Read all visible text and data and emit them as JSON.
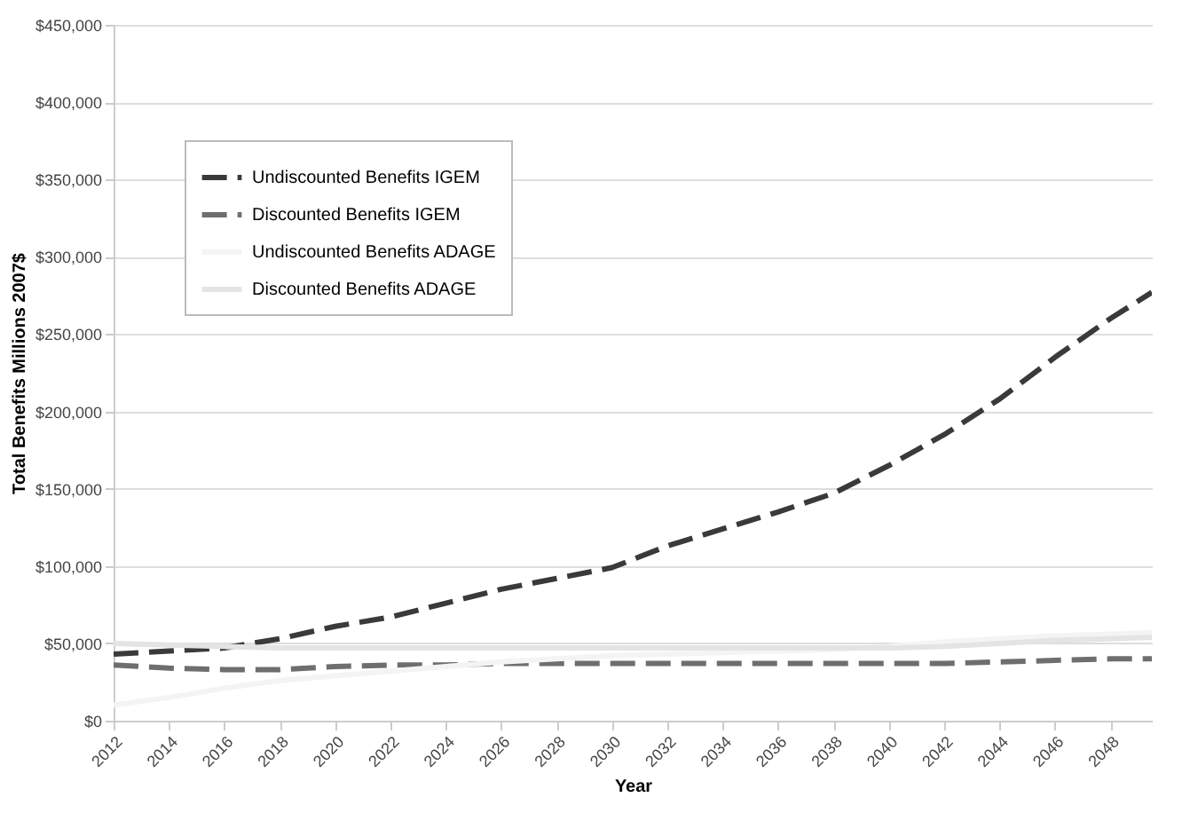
{
  "chart_data": {
    "type": "line",
    "xlabel": "Year",
    "ylabel": "Total Benefits Millions 2007$",
    "x": [
      2012,
      2014,
      2016,
      2018,
      2020,
      2022,
      2024,
      2026,
      2028,
      2030,
      2032,
      2034,
      2036,
      2038,
      2040,
      2042,
      2044,
      2046,
      2048,
      2049.5
    ],
    "series": [
      {
        "name": "Undiscounted Benefits IGEM",
        "color": "#3a3a3a",
        "line_style": "dashed",
        "values": [
          43000,
          45000,
          47000,
          53000,
          61000,
          67000,
          76000,
          85000,
          92000,
          99000,
          113000,
          124000,
          135000,
          147000,
          165000,
          185000,
          208000,
          235000,
          260000,
          277000
        ]
      },
      {
        "name": "Discounted Benefits IGEM",
        "color": "#6e6e6e",
        "line_style": "dashed",
        "values": [
          36000,
          34000,
          33000,
          33000,
          35000,
          36000,
          36000,
          37000,
          37000,
          37000,
          37000,
          37000,
          37000,
          37000,
          37000,
          37000,
          38000,
          39000,
          40000,
          40000
        ]
      },
      {
        "name": "Undiscounted Benefits ADAGE",
        "color": "#f4f4f4",
        "line_style": "solid",
        "values": [
          10000,
          15000,
          21000,
          26000,
          29000,
          32000,
          35000,
          38000,
          40000,
          42000,
          43000,
          44000,
          45000,
          46000,
          48000,
          51000,
          53000,
          55000,
          56000,
          57000
        ]
      },
      {
        "name": "Discounted Benefits ADAGE",
        "color": "#e4e4e4",
        "line_style": "solid",
        "values": [
          50000,
          49000,
          48000,
          47000,
          47000,
          47000,
          47000,
          47000,
          47000,
          47000,
          47000,
          47000,
          47000,
          47000,
          47000,
          48000,
          50000,
          52000,
          53000,
          54000
        ]
      }
    ],
    "xlim": [
      2012,
      2049.5
    ],
    "xticks": [
      2012,
      2014,
      2016,
      2018,
      2020,
      2022,
      2024,
      2026,
      2028,
      2030,
      2032,
      2034,
      2036,
      2038,
      2040,
      2042,
      2044,
      2046,
      2048
    ],
    "ylim": [
      0,
      450000
    ],
    "yticks": [
      {
        "value": 0,
        "label": "$0"
      },
      {
        "value": 50000,
        "label": "$50,000"
      },
      {
        "value": 100000,
        "label": "$100,000"
      },
      {
        "value": 150000,
        "label": "$150,000"
      },
      {
        "value": 200000,
        "label": "$200,000"
      },
      {
        "value": 250000,
        "label": "$250,000"
      },
      {
        "value": 300000,
        "label": "$300,000"
      },
      {
        "value": 350000,
        "label": "$350,000"
      },
      {
        "value": 400000,
        "label": "$400,000"
      },
      {
        "value": 450000,
        "label": "$450,000"
      }
    ],
    "grid": "y",
    "legend": "top left",
    "marker": "none"
  }
}
